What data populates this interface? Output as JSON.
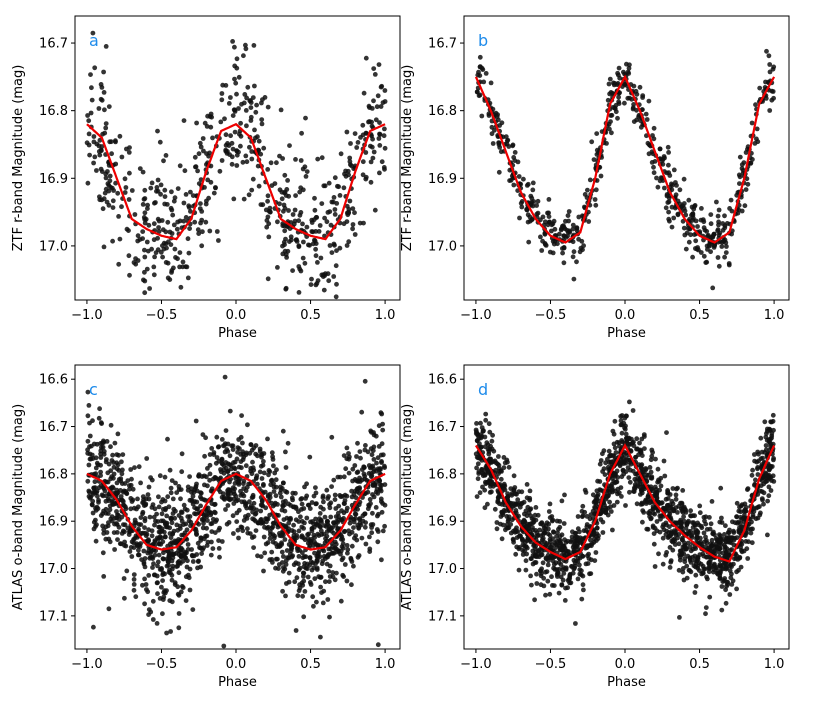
{
  "figure": {
    "panel_letters": [
      "a",
      "b",
      "c",
      "d"
    ],
    "x_label": "Phase",
    "y_labels": [
      "ZTF r-band Magnitude (mag)",
      "ZTF r-band Magnitude (mag)",
      "ATLAS o-band Magnitude (mag)",
      "ATLAS o-band Magnitude (mag)"
    ]
  },
  "colors": {
    "points": "#111111",
    "model_line": "#ee0000",
    "panel_letter": "#1f8ceb",
    "axes": "#000000"
  },
  "chart_data": [
    {
      "panel": "a",
      "type": "scatter",
      "xlabel": "Phase",
      "ylabel": "ZTF r-band Magnitude (mag)",
      "xlim": [
        -1.08,
        1.1
      ],
      "ylim": [
        17.08,
        16.66
      ],
      "y_inverted": true,
      "xticks": [
        -1.0,
        -0.5,
        0.0,
        0.5,
        1.0
      ],
      "xtick_labels": [
        "−1.0",
        "−0.5",
        "0.0",
        "0.5",
        "1.0"
      ],
      "yticks": [
        16.7,
        16.8,
        16.9,
        17.0
      ],
      "ytick_labels": [
        "16.7",
        "16.8",
        "16.9",
        "17.0"
      ],
      "model": {
        "name": "fit",
        "x": [
          -1.0,
          -0.9,
          -0.8,
          -0.7,
          -0.6,
          -0.5,
          -0.4,
          -0.3,
          -0.2,
          -0.1,
          0.0,
          0.1,
          0.2,
          0.3,
          0.4,
          0.5,
          0.6,
          0.7,
          0.8,
          0.9,
          1.0
        ],
        "y": [
          16.82,
          16.84,
          16.9,
          16.96,
          16.975,
          16.985,
          16.99,
          16.96,
          16.89,
          16.83,
          16.82,
          16.84,
          16.9,
          16.96,
          16.975,
          16.985,
          16.99,
          16.96,
          16.89,
          16.83,
          16.82
        ]
      },
      "scatter": {
        "n_points": 700,
        "spread": 0.05,
        "outlier_frac": 0.15,
        "seed": 11
      }
    },
    {
      "panel": "b",
      "type": "scatter",
      "xlabel": "Phase",
      "ylabel": "ZTF r-band Magnitude (mag)",
      "xlim": [
        -1.08,
        1.1
      ],
      "ylim": [
        17.08,
        16.66
      ],
      "y_inverted": true,
      "xticks": [
        -1.0,
        -0.5,
        0.0,
        0.5,
        1.0
      ],
      "xtick_labels": [
        "−1.0",
        "−0.5",
        "0.0",
        "0.5",
        "1.0"
      ],
      "yticks": [
        16.7,
        16.8,
        16.9,
        17.0
      ],
      "ytick_labels": [
        "16.7",
        "16.8",
        "16.9",
        "17.0"
      ],
      "model": {
        "name": "fit",
        "x": [
          -1.0,
          -0.9,
          -0.8,
          -0.7,
          -0.6,
          -0.5,
          -0.4,
          -0.3,
          -0.2,
          -0.1,
          0.0,
          0.1,
          0.2,
          0.3,
          0.4,
          0.5,
          0.6,
          0.7,
          0.8,
          0.9,
          1.0
        ],
        "y": [
          16.75,
          16.8,
          16.86,
          16.92,
          16.96,
          16.985,
          16.995,
          16.98,
          16.9,
          16.79,
          16.75,
          16.8,
          16.86,
          16.92,
          16.96,
          16.985,
          16.995,
          16.98,
          16.9,
          16.79,
          16.75
        ]
      },
      "scatter": {
        "n_points": 650,
        "spread": 0.02,
        "outlier_frac": 0.02,
        "seed": 23
      }
    },
    {
      "panel": "c",
      "type": "scatter",
      "xlabel": "Phase",
      "ylabel": "ATLAS o-band Magnitude (mag)",
      "xlim": [
        -1.08,
        1.1
      ],
      "ylim": [
        17.17,
        16.57
      ],
      "y_inverted": true,
      "xticks": [
        -1.0,
        -0.5,
        0.0,
        0.5,
        1.0
      ],
      "xtick_labels": [
        "−1.0",
        "−0.5",
        "0.0",
        "0.5",
        "1.0"
      ],
      "yticks": [
        16.6,
        16.7,
        16.8,
        16.9,
        17.0,
        17.1
      ],
      "ytick_labels": [
        "16.6",
        "16.7",
        "16.8",
        "16.9",
        "17.0",
        "17.1"
      ],
      "model": {
        "name": "fit",
        "x": [
          -1.0,
          -0.9,
          -0.8,
          -0.7,
          -0.6,
          -0.5,
          -0.4,
          -0.3,
          -0.2,
          -0.1,
          0.0,
          0.1,
          0.2,
          0.3,
          0.4,
          0.5,
          0.6,
          0.7,
          0.8,
          0.9,
          1.0
        ],
        "y": [
          16.8,
          16.815,
          16.855,
          16.91,
          16.95,
          16.96,
          16.955,
          16.92,
          16.865,
          16.815,
          16.8,
          16.815,
          16.855,
          16.91,
          16.95,
          16.96,
          16.955,
          16.92,
          16.865,
          16.815,
          16.8
        ]
      },
      "scatter": {
        "n_points": 1600,
        "spread": 0.065,
        "outlier_frac": 0.04,
        "seed": 37
      }
    },
    {
      "panel": "d",
      "type": "scatter",
      "xlabel": "Phase",
      "ylabel": "ATLAS o-band Magnitude (mag)",
      "xlim": [
        -1.08,
        1.1
      ],
      "ylim": [
        17.17,
        16.57
      ],
      "y_inverted": true,
      "xticks": [
        -1.0,
        -0.5,
        0.0,
        0.5,
        1.0
      ],
      "xtick_labels": [
        "−1.0",
        "−0.5",
        "0.0",
        "0.5",
        "1.0"
      ],
      "yticks": [
        16.6,
        16.7,
        16.8,
        16.9,
        17.0,
        17.1
      ],
      "ytick_labels": [
        "16.6",
        "16.7",
        "16.8",
        "16.9",
        "17.0",
        "17.1"
      ],
      "model": {
        "name": "fit",
        "x": [
          -1.0,
          -0.9,
          -0.8,
          -0.7,
          -0.6,
          -0.5,
          -0.4,
          -0.3,
          -0.2,
          -0.1,
          0.0,
          0.1,
          0.2,
          0.3,
          0.4,
          0.5,
          0.6,
          0.7,
          0.8,
          0.9,
          1.0
        ],
        "y": [
          16.74,
          16.79,
          16.86,
          16.91,
          16.945,
          16.965,
          16.98,
          16.965,
          16.9,
          16.8,
          16.74,
          16.8,
          16.86,
          16.9,
          16.93,
          16.955,
          16.975,
          16.985,
          16.92,
          16.81,
          16.74
        ]
      },
      "scatter": {
        "n_points": 1700,
        "spread": 0.04,
        "outlier_frac": 0.04,
        "seed": 53
      }
    }
  ]
}
